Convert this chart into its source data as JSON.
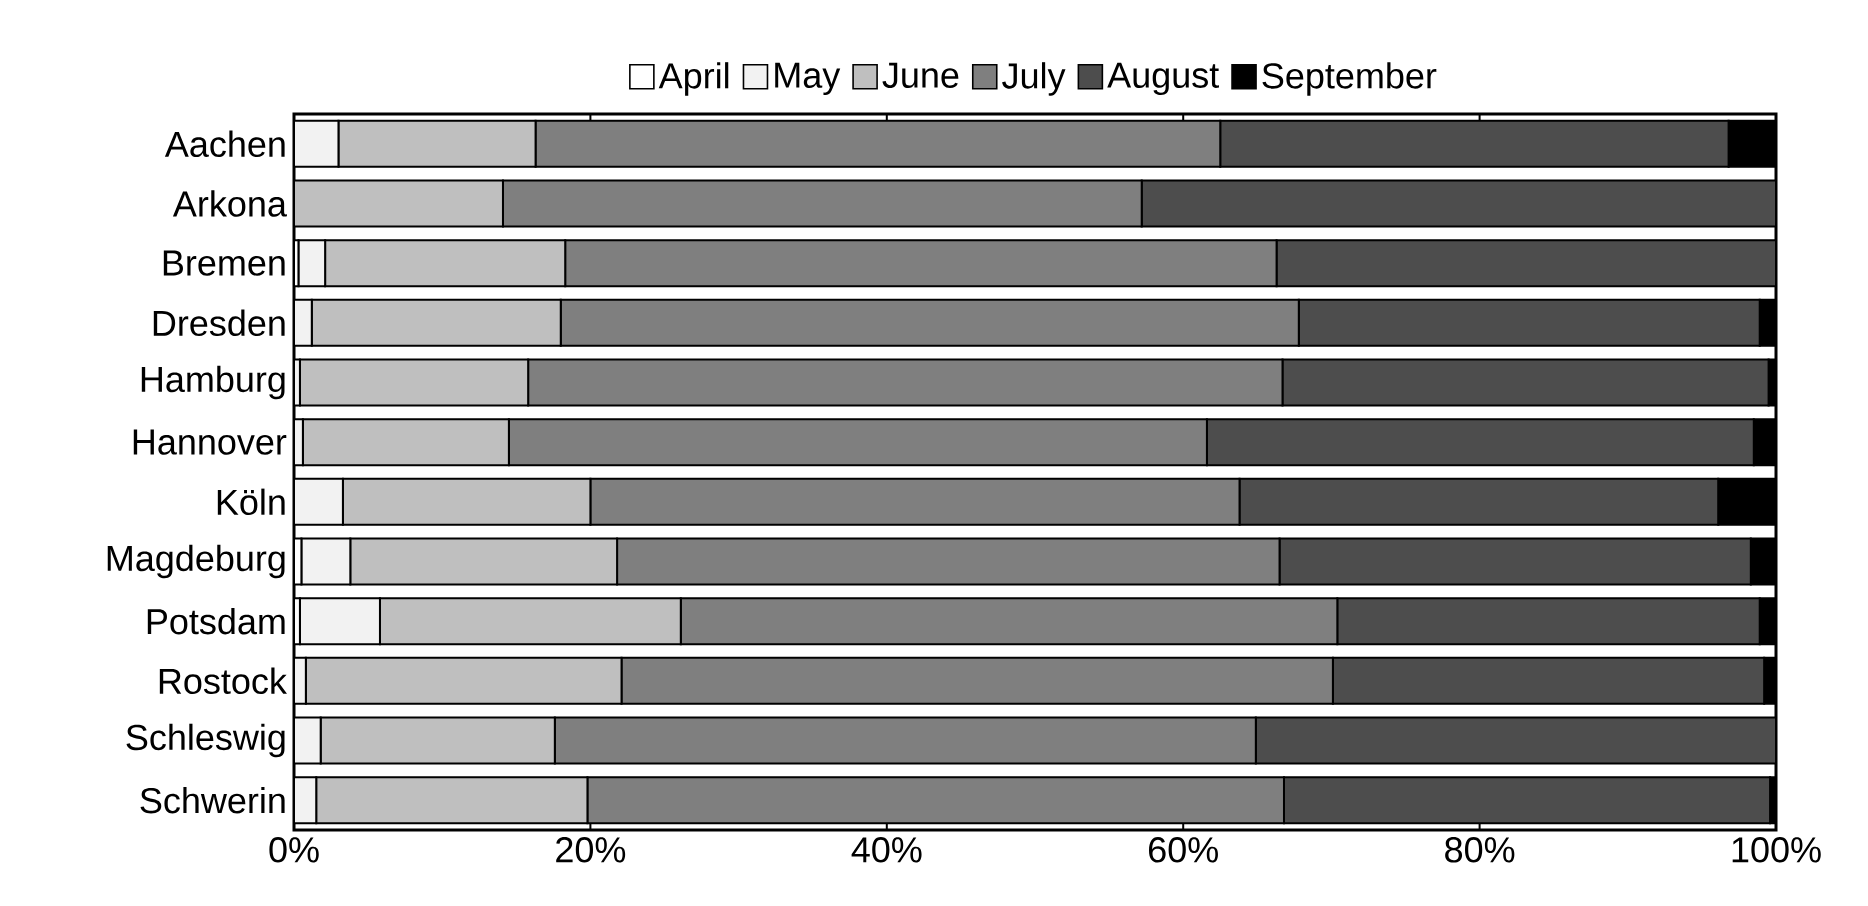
{
  "chart_data": {
    "type": "bar",
    "orientation": "horizontal",
    "stacked": true,
    "legend": "top",
    "grid": false,
    "categories": [
      "Aachen",
      "Arkona",
      "Bremen",
      "Dresden",
      "Hamburg",
      "Hannover",
      "Köln",
      "Magdeburg",
      "Potsdam",
      "Rostock",
      "Schleswig",
      "Schwerin"
    ],
    "xlim": [
      0,
      100
    ],
    "xticks": [
      {
        "value": 0,
        "label": "0%"
      },
      {
        "value": 20,
        "label": "20%"
      },
      {
        "value": 40,
        "label": "40%"
      },
      {
        "value": 60,
        "label": "60%"
      },
      {
        "value": 80,
        "label": "80%"
      },
      {
        "value": 100,
        "label": "100%"
      }
    ],
    "series": [
      {
        "name": "April",
        "color": "#ffffff",
        "values": [
          0,
          0,
          0.3,
          0,
          0,
          0,
          0,
          0.5,
          0.4,
          0,
          0,
          0
        ]
      },
      {
        "name": "May",
        "color": "#f2f2f2",
        "values": [
          3.0,
          0,
          1.8,
          1.2,
          0.4,
          0.6,
          3.3,
          3.3,
          5.4,
          0.8,
          1.8,
          1.5
        ]
      },
      {
        "name": "June",
        "color": "#bfbfbf",
        "values": [
          13.3,
          14.1,
          16.2,
          16.8,
          15.4,
          13.9,
          16.7,
          18.0,
          20.3,
          21.3,
          15.8,
          18.3
        ]
      },
      {
        "name": "July",
        "color": "#7f7f7f",
        "values": [
          46.2,
          43.1,
          48.0,
          49.8,
          50.9,
          47.1,
          43.8,
          44.7,
          44.3,
          48.0,
          47.3,
          47.0
        ]
      },
      {
        "name": "August",
        "color": "#4d4d4d",
        "values": [
          34.3,
          42.8,
          33.7,
          31.1,
          32.8,
          36.9,
          32.3,
          31.8,
          28.5,
          29.1,
          35.1,
          32.8
        ]
      },
      {
        "name": "September",
        "color": "#000000",
        "values": [
          3.2,
          0,
          0,
          1.1,
          0.5,
          1.5,
          3.9,
          1.7,
          1.1,
          0.8,
          0,
          0.4
        ]
      }
    ]
  }
}
